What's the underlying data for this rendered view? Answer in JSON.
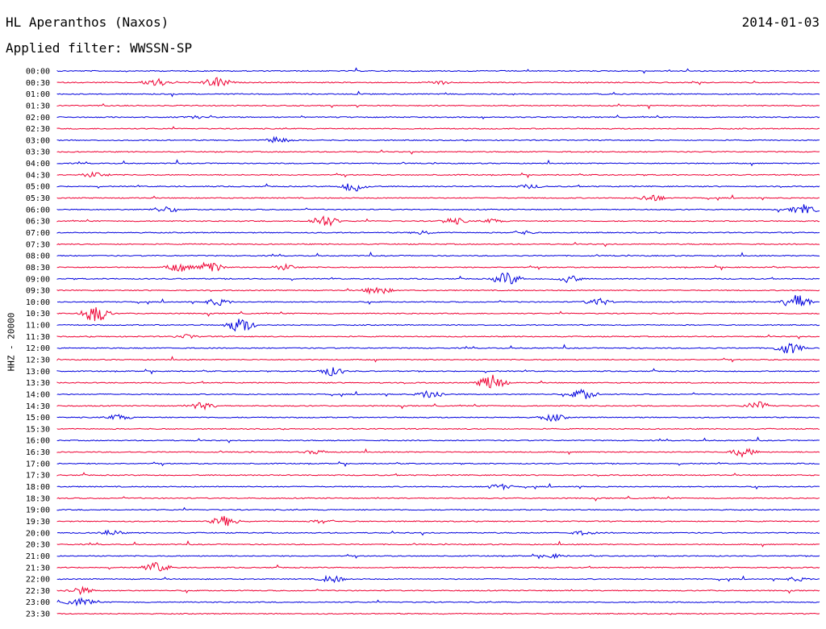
{
  "header": {
    "title": "HL Aperanthos (Naxos)",
    "date": "2014-01-03",
    "filter": "Applied filter: WWSSN-SP"
  },
  "side_label": "HHZ - 20000",
  "colors": {
    "even": "#0000dd",
    "odd": "#ee0033"
  },
  "chart_data": {
    "type": "line",
    "title": "HL Aperanthos (Naxos)",
    "subtitle": "Applied filter: WWSSN-SP",
    "ylabel": "HHZ - 20000",
    "grid": false,
    "rows": [
      {
        "label": "00:00",
        "events": []
      },
      {
        "label": "00:30",
        "events": [
          [
            0.13,
            6
          ],
          [
            0.21,
            7
          ],
          [
            0.5,
            3
          ]
        ]
      },
      {
        "label": "01:00",
        "events": []
      },
      {
        "label": "01:30",
        "events": []
      },
      {
        "label": "02:00",
        "events": [
          [
            0.18,
            2
          ]
        ]
      },
      {
        "label": "02:30",
        "events": []
      },
      {
        "label": "03:00",
        "events": [
          [
            0.29,
            5
          ]
        ]
      },
      {
        "label": "03:30",
        "events": []
      },
      {
        "label": "04:00",
        "events": []
      },
      {
        "label": "04:30",
        "events": [
          [
            0.05,
            4
          ]
        ]
      },
      {
        "label": "05:00",
        "events": [
          [
            0.39,
            7
          ],
          [
            0.62,
            3
          ]
        ]
      },
      {
        "label": "05:30",
        "events": [
          [
            0.78,
            5
          ]
        ]
      },
      {
        "label": "06:00",
        "events": [
          [
            0.14,
            4
          ],
          [
            0.98,
            7
          ]
        ]
      },
      {
        "label": "06:30",
        "events": [
          [
            0.35,
            8
          ],
          [
            0.52,
            5
          ],
          [
            0.57,
            3
          ]
        ]
      },
      {
        "label": "07:00",
        "events": [
          [
            0.48,
            3
          ],
          [
            0.61,
            3
          ]
        ]
      },
      {
        "label": "07:30",
        "events": []
      },
      {
        "label": "08:00",
        "events": []
      },
      {
        "label": "08:30",
        "events": [
          [
            0.16,
            6
          ],
          [
            0.2,
            8
          ],
          [
            0.3,
            4
          ]
        ]
      },
      {
        "label": "09:00",
        "events": [
          [
            0.59,
            9
          ],
          [
            0.67,
            5
          ]
        ]
      },
      {
        "label": "09:30",
        "events": [
          [
            0.42,
            6
          ]
        ]
      },
      {
        "label": "10:00",
        "events": [
          [
            0.21,
            5
          ],
          [
            0.71,
            5
          ],
          [
            0.97,
            10
          ]
        ]
      },
      {
        "label": "10:30",
        "events": [
          [
            0.05,
            12
          ]
        ]
      },
      {
        "label": "11:00",
        "events": [
          [
            0.24,
            10
          ]
        ]
      },
      {
        "label": "11:30",
        "events": [
          [
            0.17,
            3
          ]
        ]
      },
      {
        "label": "12:00",
        "events": [
          [
            0.96,
            8
          ]
        ]
      },
      {
        "label": "12:30",
        "events": []
      },
      {
        "label": "13:00",
        "events": [
          [
            0.36,
            6
          ]
        ]
      },
      {
        "label": "13:30",
        "events": [
          [
            0.57,
            11
          ]
        ]
      },
      {
        "label": "14:00",
        "events": [
          [
            0.49,
            6
          ],
          [
            0.69,
            7
          ]
        ]
      },
      {
        "label": "14:30",
        "events": [
          [
            0.19,
            5
          ],
          [
            0.92,
            6
          ]
        ]
      },
      {
        "label": "15:00",
        "events": [
          [
            0.08,
            4
          ],
          [
            0.65,
            5
          ]
        ]
      },
      {
        "label": "15:30",
        "events": []
      },
      {
        "label": "16:00",
        "events": []
      },
      {
        "label": "16:30",
        "events": [
          [
            0.34,
            3
          ],
          [
            0.9,
            6
          ]
        ]
      },
      {
        "label": "17:00",
        "events": []
      },
      {
        "label": "17:30",
        "events": []
      },
      {
        "label": "18:00",
        "events": [
          [
            0.58,
            4
          ]
        ]
      },
      {
        "label": "18:30",
        "events": []
      },
      {
        "label": "19:00",
        "events": []
      },
      {
        "label": "19:30",
        "events": [
          [
            0.22,
            7
          ],
          [
            0.35,
            3
          ]
        ]
      },
      {
        "label": "20:00",
        "events": [
          [
            0.07,
            4
          ],
          [
            0.69,
            3
          ]
        ]
      },
      {
        "label": "20:30",
        "events": []
      },
      {
        "label": "21:00",
        "events": [
          [
            0.65,
            3
          ]
        ]
      },
      {
        "label": "21:30",
        "events": [
          [
            0.13,
            7
          ]
        ]
      },
      {
        "label": "22:00",
        "events": [
          [
            0.36,
            5
          ],
          [
            0.97,
            3
          ]
        ]
      },
      {
        "label": "22:30",
        "events": [
          [
            0.03,
            5
          ]
        ]
      },
      {
        "label": "23:00",
        "events": [
          [
            0.03,
            6
          ]
        ]
      },
      {
        "label": "23:30",
        "events": []
      }
    ]
  }
}
